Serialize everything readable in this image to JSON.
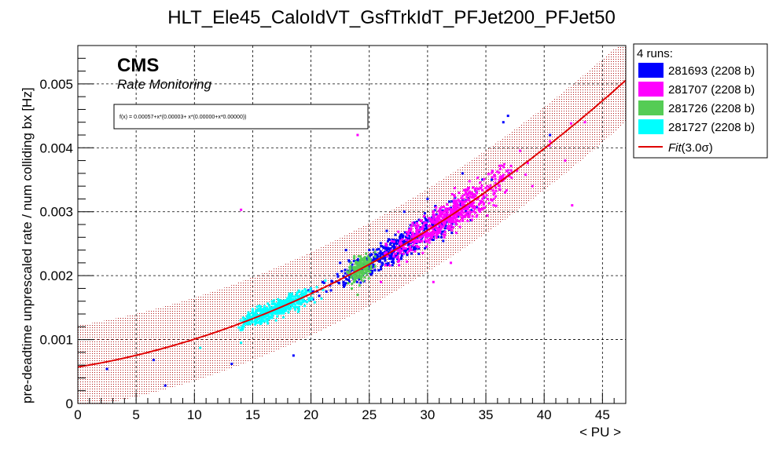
{
  "chart_data": {
    "type": "scatter",
    "title": "HLT_Ele45_CaloIdVT_GsfTrkIdT_PFJet200_PFJet50",
    "xlabel": "< PU >",
    "ylabel": "pre-deadtime unprescaled rate / num colliding bx [Hz]",
    "xlim": [
      0,
      47
    ],
    "ylim": [
      0,
      0.0056
    ],
    "x_ticks": [
      "0",
      "5",
      "10",
      "15",
      "20",
      "25",
      "30",
      "35",
      "40",
      "45"
    ],
    "y_ticks": [
      "0",
      "0.001",
      "0.002",
      "0.003",
      "0.004",
      "0.005"
    ],
    "grid": true,
    "cms_label": "CMS",
    "cms_sublabel": "Rate Monitoring",
    "fit_formula": "f(x) = 0.00057+x*(0.00003+ x*(0.00000+x*0.00000))",
    "fit": {
      "c0": 0.00057,
      "c1": 3e-05,
      "c2": 1.35e-06,
      "c3": 9e-10,
      "sigma_band": 0.00065,
      "xmin": 0,
      "xmax": 47
    },
    "legend": {
      "position": "top-right outside",
      "header": "4 runs:",
      "fit_name": "Fit",
      "fit_suffix": "(3.0σ)"
    },
    "series": [
      {
        "name": "281693 (2208 b)",
        "color": "#0000ff",
        "points": [
          [
            2.5,
            0.00054
          ],
          [
            6.5,
            0.00068
          ],
          [
            7.5,
            0.00028
          ],
          [
            13.2,
            0.00062
          ],
          [
            18.5,
            0.00075
          ],
          [
            40.5,
            0.0042
          ],
          [
            36.9,
            0.0045
          ],
          [
            36.5,
            0.0044
          ],
          [
            37.0,
            0.0036
          ],
          [
            35.5,
            0.0035
          ],
          [
            30.0,
            0.0032
          ],
          [
            28.0,
            0.003
          ],
          [
            25.0,
            0.0024
          ],
          [
            21.0,
            0.0019
          ],
          [
            22.5,
            0.0022
          ],
          [
            20.0,
            0.0018
          ],
          [
            19.5,
            0.0016
          ],
          [
            23.0,
            0.0024
          ],
          [
            26.5,
            0.0027
          ],
          [
            33.0,
            0.0036
          ]
        ],
        "cluster": {
          "x": [
            18,
            37
          ],
          "center": 27.5,
          "count": 520
        }
      },
      {
        "name": "281707 (2208 b)",
        "color": "#ff00ff",
        "points": [
          [
            14.0,
            0.00303
          ],
          [
            24.0,
            0.0042
          ],
          [
            42.4,
            0.0031
          ],
          [
            40.5,
            0.0041
          ],
          [
            41.8,
            0.0038
          ],
          [
            30.5,
            0.0019
          ],
          [
            32.0,
            0.0022
          ],
          [
            26.0,
            0.0019
          ],
          [
            43.5,
            0.0044
          ],
          [
            39.0,
            0.0034
          ]
        ],
        "cluster": {
          "x": [
            26,
            42.5
          ],
          "center": 32,
          "count": 620
        }
      },
      {
        "name": "281726 (2208 b)",
        "color": "#55cc55",
        "points": [
          [
            23.5,
            0.0018
          ],
          [
            24.5,
            0.0022
          ],
          [
            25.5,
            0.0023
          ],
          [
            24.0,
            0.0017
          ]
        ],
        "cluster": {
          "x": [
            22.8,
            26
          ],
          "center": 24.3,
          "count": 180
        }
      },
      {
        "name": "281727 (2208 b)",
        "color": "#00ffff",
        "points": [
          [
            10.5,
            0.00087
          ],
          [
            14.0,
            0.00095
          ],
          [
            16.0,
            0.0015
          ],
          [
            17.0,
            0.0013
          ]
        ],
        "cluster": {
          "x": [
            13.8,
            24
          ],
          "center": 17,
          "count": 520
        }
      }
    ]
  }
}
